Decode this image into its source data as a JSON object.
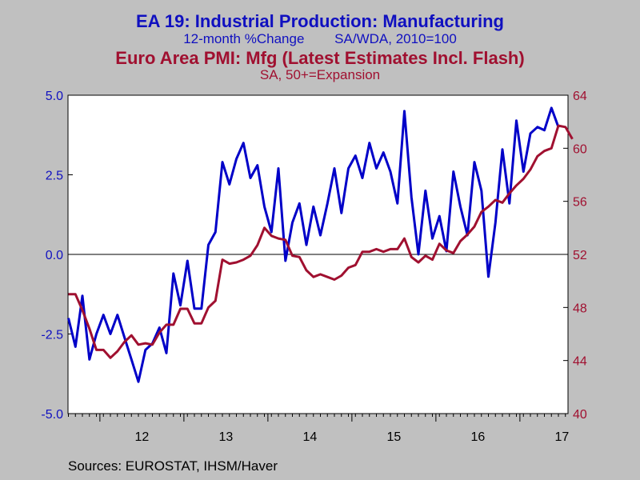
{
  "chart_data": {
    "type": "line",
    "titles": [
      {
        "text": "EA 19: Industrial Production: Manufacturing",
        "color": "#1010c0"
      },
      {
        "text": "12-month %Change        SA/WDA, 2010=100",
        "color": "#1010c0"
      },
      {
        "text": "Euro Area PMI: Mfg (Latest Estimates Incl. Flash)",
        "color": "#a01030"
      },
      {
        "text": "SA, 50+=Expansion",
        "color": "#a01030"
      }
    ],
    "source": "Sources:  EUROSTAT, IHSM/Haver",
    "x_ticks": [
      "12",
      "13",
      "14",
      "15",
      "16",
      "17"
    ],
    "left_axis": {
      "ylim": [
        -5.0,
        5.0
      ],
      "ticks": [
        "5.0",
        "2.5",
        "0.0",
        "-2.5",
        "-5.0"
      ],
      "color": "#1010c0"
    },
    "right_axis": {
      "ylim": [
        40,
        64
      ],
      "ticks": [
        "64",
        "60",
        "56",
        "52",
        "48",
        "44",
        "40"
      ],
      "color": "#a01030"
    },
    "zero_line": 0.0,
    "series": [
      {
        "axis": "left",
        "color": "#0000c8",
        "start": "2011-08",
        "values": [
          -2.0,
          -2.9,
          -1.3,
          -3.3,
          -2.5,
          -1.9,
          -2.5,
          -1.9,
          -2.6,
          -3.3,
          -4.0,
          -3.0,
          -2.8,
          -2.3,
          -3.1,
          -0.6,
          -1.6,
          -0.2,
          -1.7,
          -1.7,
          0.3,
          0.7,
          2.9,
          2.2,
          3.0,
          3.5,
          2.4,
          2.8,
          1.5,
          0.7,
          2.7,
          -0.2,
          1.0,
          1.6,
          0.3,
          1.5,
          0.6,
          1.6,
          2.7,
          1.3,
          2.7,
          3.1,
          2.4,
          3.5,
          2.7,
          3.2,
          2.6,
          1.6,
          4.5,
          1.8,
          0.0,
          2.0,
          0.5,
          1.2,
          0.1,
          2.6,
          1.5,
          0.6,
          2.9,
          2.0,
          -0.7,
          1.0,
          3.3,
          1.6,
          4.2,
          2.6,
          3.8,
          4.0,
          3.9,
          4.6,
          4.0
        ]
      },
      {
        "axis": "right",
        "color": "#a01030",
        "start": "2011-08",
        "values": [
          49.0,
          49.0,
          47.8,
          46.4,
          44.8,
          44.8,
          44.2,
          44.7,
          45.4,
          45.9,
          45.2,
          45.3,
          45.2,
          46.1,
          46.7,
          46.7,
          47.9,
          47.9,
          46.8,
          46.8,
          48.0,
          48.5,
          51.6,
          51.3,
          51.4,
          51.6,
          51.9,
          52.7,
          54.0,
          53.4,
          53.2,
          53.1,
          51.9,
          51.8,
          50.8,
          50.3,
          50.5,
          50.3,
          50.1,
          50.4,
          51.0,
          51.2,
          52.2,
          52.2,
          52.4,
          52.2,
          52.4,
          52.4,
          53.2,
          51.8,
          51.4,
          51.9,
          51.6,
          52.8,
          52.3,
          52.1,
          53.0,
          53.5,
          54.1,
          55.2,
          55.6,
          56.1,
          55.9,
          56.6,
          57.2,
          57.7,
          58.4,
          59.4,
          59.8,
          60.0,
          61.7,
          61.6,
          60.7
        ]
      }
    ],
    "grid": false,
    "legend": "none"
  }
}
